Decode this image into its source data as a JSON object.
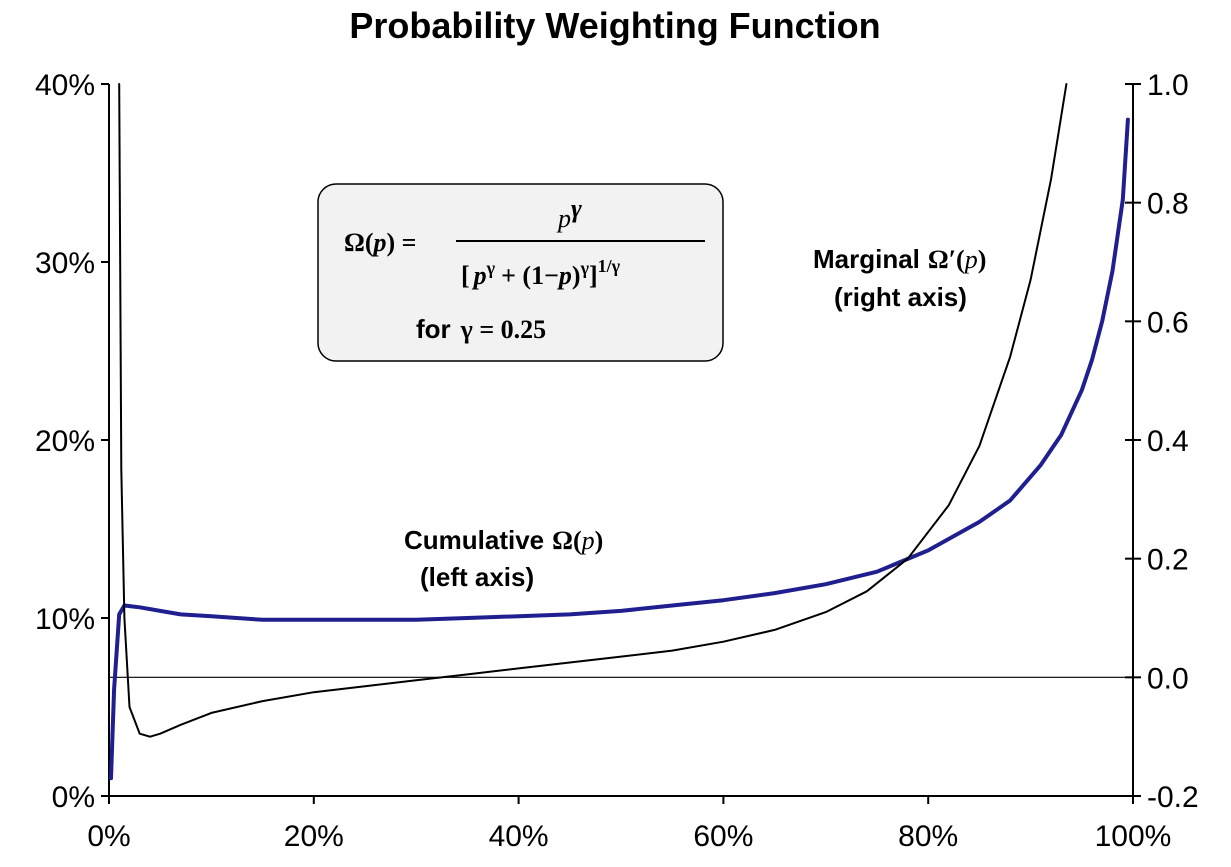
{
  "chart_data": {
    "type": "line",
    "title": "Probability Weighting Function",
    "x_ticks": [
      "0%",
      "20%",
      "40%",
      "60%",
      "80%",
      "100%"
    ],
    "xlim": [
      0,
      1
    ],
    "left_axis": {
      "ylim": [
        0,
        0.4
      ],
      "ticks": [
        "0%",
        "10%",
        "20%",
        "30%",
        "40%"
      ]
    },
    "right_axis": {
      "ylim": [
        -0.2,
        1.0
      ],
      "ticks": [
        "-0.2",
        "0.0",
        "0.2",
        "0.4",
        "0.6",
        "0.8",
        "1.0"
      ]
    },
    "grid": false,
    "legend": "none",
    "series": [
      {
        "name": "Cumulative Ω(p)",
        "axis": "left",
        "color": "#1f1f8f",
        "x": [
          0.002,
          0.005,
          0.01,
          0.015,
          0.03,
          0.05,
          0.07,
          0.1,
          0.15,
          0.2,
          0.25,
          0.3,
          0.35,
          0.4,
          0.45,
          0.5,
          0.55,
          0.6,
          0.65,
          0.7,
          0.75,
          0.8,
          0.85,
          0.88,
          0.91,
          0.93,
          0.95,
          0.96,
          0.97,
          0.98,
          0.99,
          0.995
        ],
        "y": [
          0.01,
          0.06,
          0.102,
          0.107,
          0.106,
          0.104,
          0.102,
          0.101,
          0.099,
          0.099,
          0.099,
          0.099,
          0.1,
          0.101,
          0.102,
          0.104,
          0.107,
          0.11,
          0.114,
          0.119,
          0.126,
          0.138,
          0.154,
          0.166,
          0.186,
          0.203,
          0.228,
          0.245,
          0.267,
          0.295,
          0.335,
          0.38
        ]
      },
      {
        "name": "Marginal Ω'(p)",
        "axis": "right",
        "color": "#000000",
        "x": [
          0.01,
          0.012,
          0.015,
          0.02,
          0.03,
          0.04,
          0.05,
          0.07,
          0.1,
          0.15,
          0.2,
          0.25,
          0.3,
          0.35,
          0.4,
          0.45,
          0.5,
          0.55,
          0.6,
          0.65,
          0.7,
          0.74,
          0.78,
          0.82,
          0.85,
          0.88,
          0.9,
          0.92,
          0.935
        ],
        "y": [
          1.0,
          0.35,
          0.1,
          -0.05,
          -0.095,
          -0.1,
          -0.095,
          -0.08,
          -0.06,
          -0.04,
          -0.025,
          -0.015,
          -0.005,
          0.005,
          0.015,
          0.025,
          0.035,
          0.045,
          0.06,
          0.08,
          0.11,
          0.145,
          0.2,
          0.29,
          0.39,
          0.54,
          0.67,
          0.84,
          1.0
        ]
      }
    ],
    "annotations": {
      "formula_lhs": "Ω(",
      "formula_p": "p",
      "formula_close": ") =",
      "numerator_p": "p",
      "numerator_exp": "γ",
      "den_open": "[",
      "den_p1": "p",
      "den_g1": "γ",
      "den_plus": "+ (1−",
      "den_p2": "p",
      "den_paren": ")",
      "den_g2": "γ",
      "den_close": "]",
      "den_exp": "1/γ",
      "for_label": "for",
      "gamma_eq": "γ = 0.25",
      "marginal_label": "Marginal",
      "marginal_symbol": "Ω′(",
      "marginal_p": "p",
      "marginal_close": ")",
      "marginal_axis": "(right axis)",
      "cumulative_label": "Cumulative",
      "cumulative_symbol": "Ω(",
      "cumulative_p": "p",
      "cumulative_close": ")",
      "cumulative_axis": "(left axis)"
    }
  }
}
